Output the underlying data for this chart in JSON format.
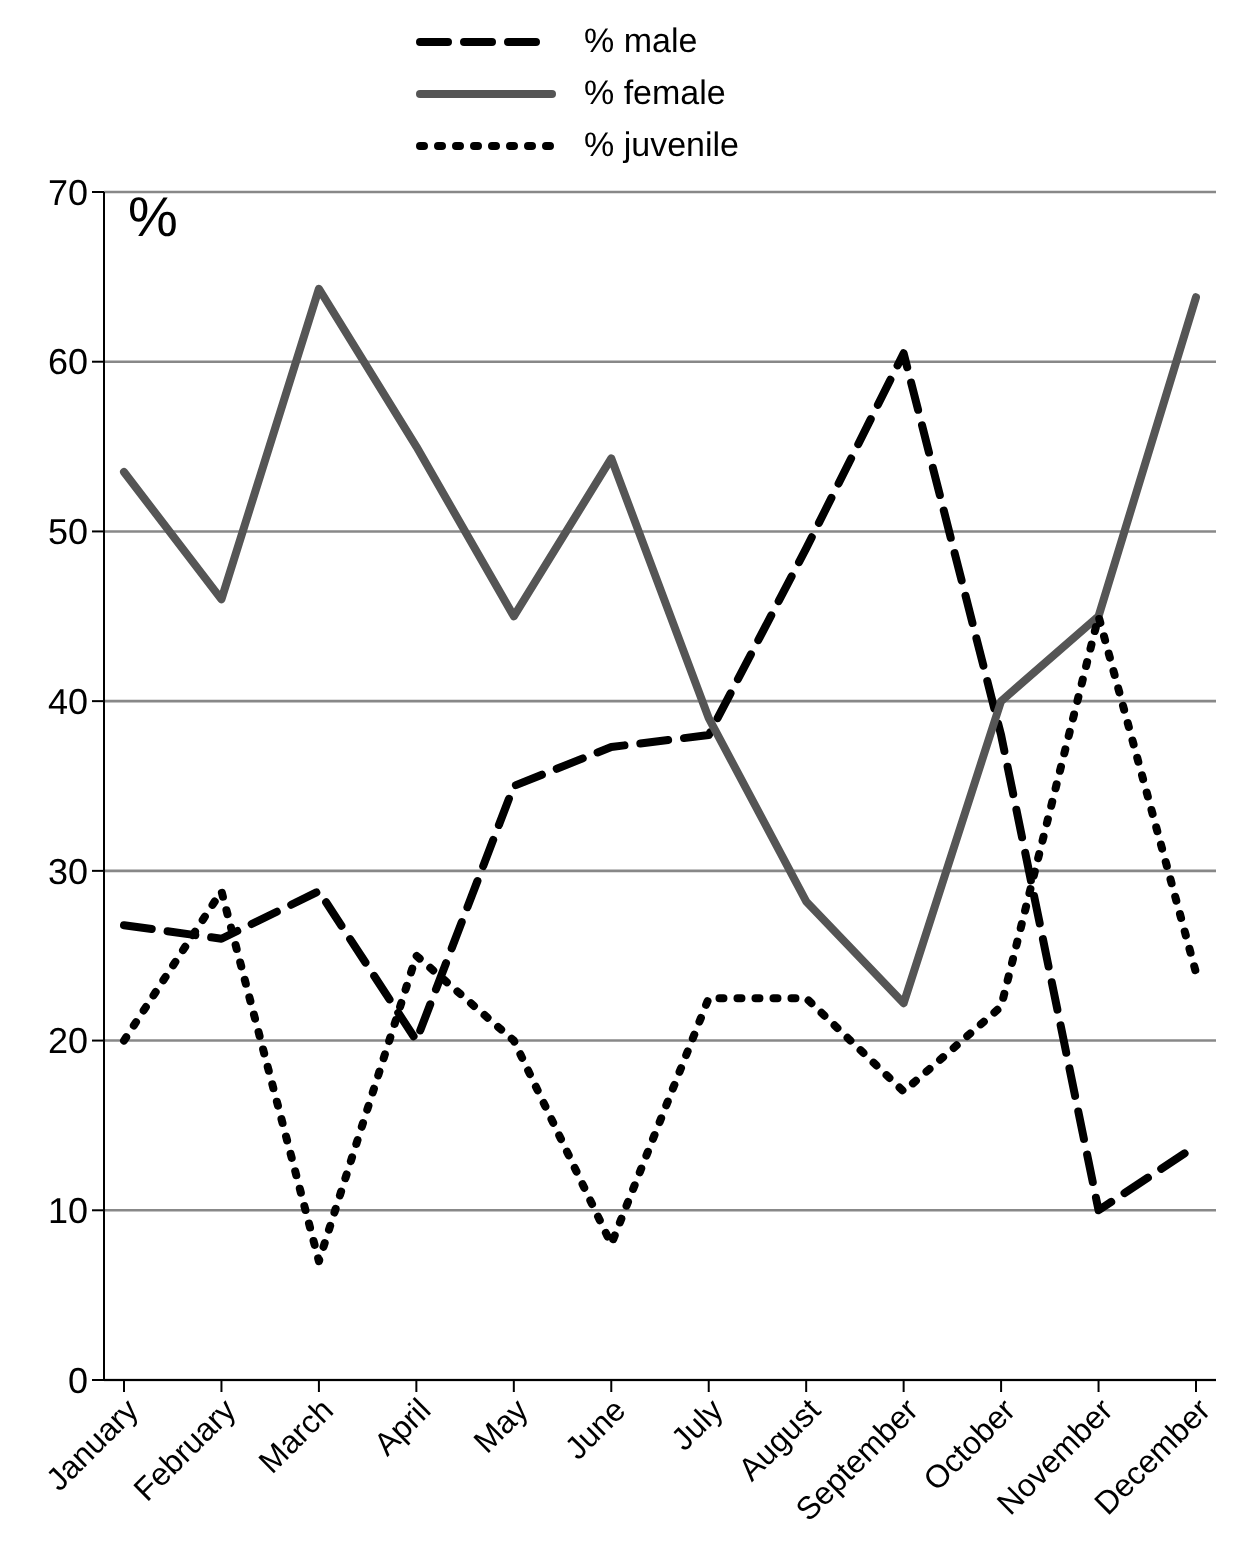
{
  "chart_data": {
    "type": "line",
    "ylabel": "%",
    "categories": [
      "January",
      "February",
      "March",
      "April",
      "May",
      "June",
      "July",
      "August",
      "September",
      "October",
      "November",
      "December"
    ],
    "series": [
      {
        "name": "% male",
        "color": "#000000",
        "line_style": "dashed",
        "values": [
          26.8,
          26,
          28.8,
          20,
          35,
          37.3,
          38,
          49,
          60.5,
          38,
          10,
          13.8
        ]
      },
      {
        "name": "% female",
        "color": "#555555",
        "line_style": "solid",
        "values": [
          53.5,
          46,
          64.3,
          55,
          45,
          54.3,
          39,
          28.2,
          22.2,
          40,
          45,
          63.8
        ]
      },
      {
        "name": "% juvenile",
        "color": "#000000",
        "line_style": "dotted",
        "values": [
          20,
          28.8,
          7,
          25,
          20,
          8,
          22.5,
          22.5,
          17,
          22,
          45,
          24
        ]
      }
    ],
    "ylim": [
      0,
      70
    ],
    "yticks": [
      0,
      10,
      20,
      30,
      40,
      50,
      60,
      70
    ],
    "grid": "y",
    "legend": "top",
    "marker": "none"
  }
}
